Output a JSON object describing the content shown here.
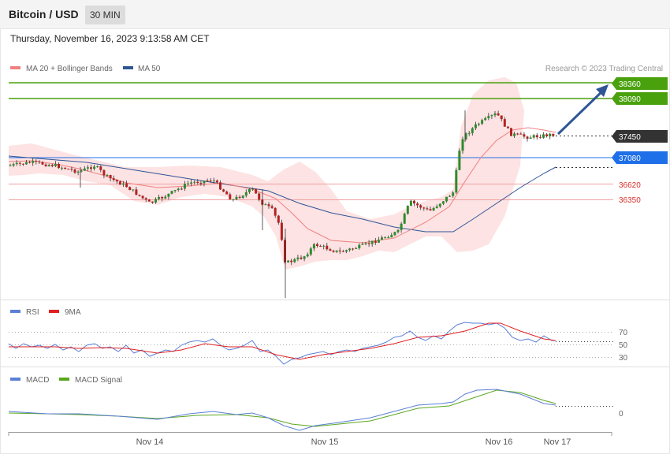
{
  "header": {
    "title": "Bitcoin / USD",
    "timeframe": "30 MIN",
    "datetime": "Thursday, November 16, 2023 9:13:58 AM CET"
  },
  "colors": {
    "ma20": "#f08080",
    "ma50": "#2f5597",
    "bollinger_fill": "#fde3e3",
    "bull_candle": "#2e8b2e",
    "bear_candle": "#b22222",
    "resistance": "#4aa10e",
    "pivot": "#1e6fe8",
    "support": "#d9302b",
    "current": "#333333",
    "rsi": "#5b7fd6",
    "rsi_ma": "#e02020",
    "macd": "#5b7fd6",
    "macd_signal": "#5aa61e",
    "arrow": "#2f5597"
  },
  "main_chart": {
    "legend": [
      {
        "label": "MA 20 + Bollinger Bands",
        "color": "#f08080"
      },
      {
        "label": "MA 50",
        "color": "#2f5597"
      }
    ],
    "copyright": "Research © 2023 Trading Central",
    "levels": [
      {
        "value": 38360,
        "label": "38360",
        "kind": "resistance"
      },
      {
        "value": 38090,
        "label": "38090",
        "kind": "resistance"
      },
      {
        "value": 37450,
        "label": "37450",
        "kind": "current"
      },
      {
        "value": 37080,
        "label": "37080",
        "kind": "pivot"
      },
      {
        "value": 36620,
        "label": "36620",
        "kind": "support"
      },
      {
        "value": 36350,
        "label": "36350",
        "kind": "support"
      }
    ],
    "arrow": "up"
  },
  "rsi_panel": {
    "legend": [
      {
        "label": "RSI",
        "color": "#5b7fd6"
      },
      {
        "label": "9MA",
        "color": "#e02020"
      }
    ],
    "levels": [
      "70",
      "50",
      "30"
    ]
  },
  "macd_panel": {
    "legend": [
      {
        "label": "MACD",
        "color": "#5b7fd6"
      },
      {
        "label": "MACD Signal",
        "color": "#5aa61e"
      }
    ],
    "zero_label": "0"
  },
  "x_axis": {
    "labels": [
      "Nov 14",
      "Nov 15",
      "Nov 16",
      "Nov 17"
    ]
  },
  "chart_data": [
    {
      "type": "line",
      "title": "Bitcoin / USD",
      "series": [
        {
          "name": "MA 20 + Bollinger Bands"
        },
        {
          "name": "MA 50"
        }
      ],
      "x": [
        "Nov 14",
        "Nov 15",
        "Nov 16",
        "Nov 17"
      ],
      "horizontal_levels": [
        38360,
        38090,
        37450,
        37080,
        36620,
        36350
      ],
      "approx_close_path": [
        36950,
        36900,
        36600,
        36800,
        36550,
        35000,
        35600,
        35800,
        36900,
        37800,
        37500,
        37450
      ]
    },
    {
      "type": "line",
      "title": "",
      "series": [
        {
          "name": "RSI"
        },
        {
          "name": "9MA"
        }
      ],
      "y_ticks": [
        70,
        50,
        30
      ]
    },
    {
      "type": "line",
      "title": "",
      "series": [
        {
          "name": "MACD"
        },
        {
          "name": "MACD Signal"
        }
      ],
      "y_ticks": [
        0
      ]
    }
  ]
}
